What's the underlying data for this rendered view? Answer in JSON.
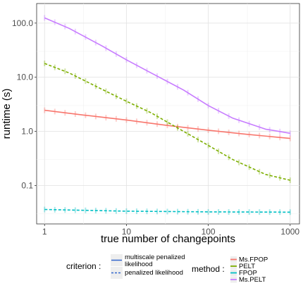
{
  "chart_data": {
    "type": "line",
    "xlabel": "true number of changepoints",
    "ylabel": "runtime (s)",
    "x_scale": "log10",
    "y_scale": "log10",
    "xlim": [
      0.8,
      1300
    ],
    "ylim": [
      0.0195,
      230
    ],
    "grid": true,
    "x_ticks": [
      {
        "value": 1,
        "label": "1"
      },
      {
        "value": 10,
        "label": "10"
      },
      {
        "value": 100,
        "label": "100"
      },
      {
        "value": 1000,
        "label": "1000"
      }
    ],
    "y_ticks": [
      {
        "value": 0.1,
        "label": "0.1"
      },
      {
        "value": 1,
        "label": "1.0"
      },
      {
        "value": 10,
        "label": "10.0"
      },
      {
        "value": 100,
        "label": "100.0"
      }
    ],
    "series": [
      {
        "name": "Ms.FPOP",
        "color": "#f8766d",
        "criterion": "multiscale penalized likelihood",
        "x": [
          1,
          3,
          10,
          30,
          100,
          300,
          1000
        ],
        "y": [
          2.45,
          2.0,
          1.62,
          1.3,
          1.05,
          0.88,
          0.74
        ]
      },
      {
        "name": "PELT",
        "color": "#7cae00",
        "criterion": "penalized likelihood",
        "x": [
          1,
          2,
          5,
          10,
          20,
          50,
          100,
          200,
          500,
          1000
        ],
        "y": [
          18.0,
          12.0,
          6.0,
          3.6,
          2.2,
          1.0,
          0.55,
          0.3,
          0.16,
          0.125
        ]
      },
      {
        "name": "FPOP",
        "color": "#00bfc4",
        "criterion": "penalized likelihood",
        "x": [
          1,
          10,
          100,
          1000
        ],
        "y": [
          0.036,
          0.0335,
          0.0325,
          0.0322
        ]
      },
      {
        "name": "Ms.PELT",
        "color": "#c77cff",
        "criterion": "multiscale penalized likelihood",
        "x": [
          1,
          2,
          5,
          10,
          20,
          50,
          100,
          200,
          500,
          1000
        ],
        "y": [
          125,
          80,
          38,
          21,
          12,
          5.8,
          3.0,
          1.75,
          1.1,
          0.92
        ]
      }
    ],
    "legend": {
      "placement": "bottom",
      "criterion": {
        "title": "criterion :",
        "items": [
          {
            "label_lines": [
              "multiscale penalized",
              "likelihood"
            ],
            "style": "solid"
          },
          {
            "label_lines": [
              "penalized likelihood"
            ],
            "style": "dashed"
          }
        ]
      },
      "method": {
        "title": "method :",
        "items": [
          {
            "label": "Ms.FPOP",
            "color": "#f8766d"
          },
          {
            "label": "PELT",
            "color": "#7cae00"
          },
          {
            "label": "FPOP",
            "color": "#00bfc4"
          },
          {
            "label": "Ms.PELT",
            "color": "#c77cff"
          }
        ]
      }
    }
  }
}
